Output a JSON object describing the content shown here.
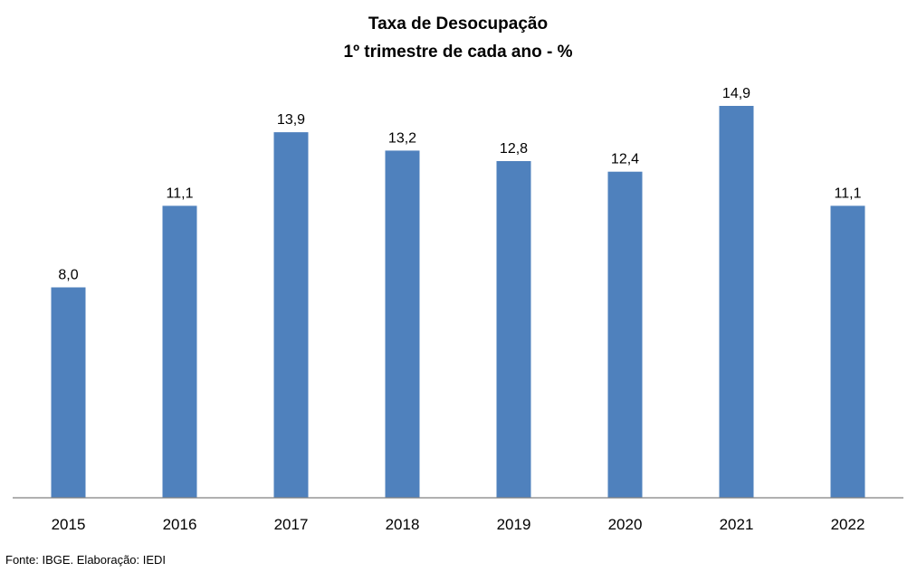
{
  "chart_data": {
    "type": "bar",
    "title": "Taxa de Desocupação",
    "subtitle": "1º trimestre de cada ano - %",
    "categories": [
      "2015",
      "2016",
      "2017",
      "2018",
      "2019",
      "2020",
      "2021",
      "2022"
    ],
    "values": [
      8.0,
      11.1,
      13.9,
      13.2,
      12.8,
      12.4,
      14.9,
      11.1
    ],
    "data_labels": [
      "8,0",
      "11,1",
      "13,9",
      "13,2",
      "12,8",
      "12,4",
      "14,9",
      "11,1"
    ],
    "xlabel": "",
    "ylabel": "",
    "ylim": [
      0,
      16
    ],
    "grid": false,
    "legend": "none",
    "bar_color": "#4f81bd",
    "axis_color": "#808080"
  },
  "source": "Fonte: IBGE. Elaboração: IEDI"
}
